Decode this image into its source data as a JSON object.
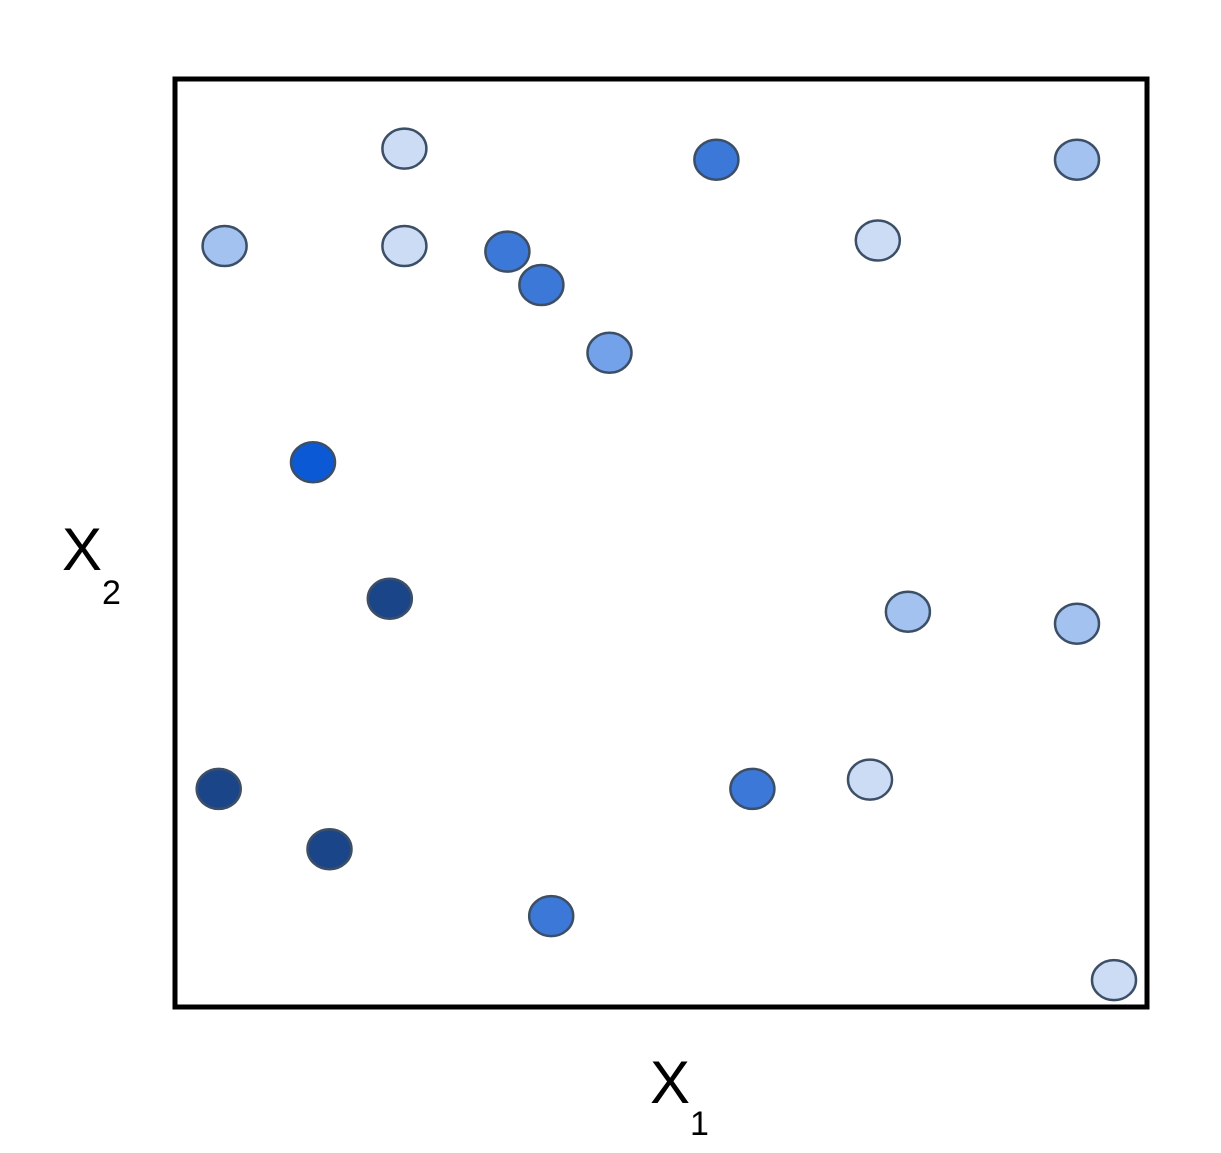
{
  "chart_data": {
    "type": "scatter",
    "title": "",
    "xlabel": {
      "main": "X",
      "sub": "1"
    },
    "ylabel": {
      "main": "X",
      "sub": "2"
    },
    "xlim": [
      0,
      1
    ],
    "ylim": [
      0,
      1
    ],
    "grid": false,
    "legend": "none",
    "colors": {
      "lightest": "#cddcf5",
      "light": "#a4c2f0",
      "medium": "#74a2ea",
      "bright": "#3c78d8",
      "vivid": "#0b59d4",
      "dark": "#1b4589",
      "stroke": "#3c4f66"
    },
    "points": [
      {
        "x": 0.236,
        "y": 0.925,
        "shade": "lightest"
      },
      {
        "x": 0.557,
        "y": 0.913,
        "shade": "bright"
      },
      {
        "x": 0.928,
        "y": 0.913,
        "shade": "light"
      },
      {
        "x": 0.051,
        "y": 0.82,
        "shade": "light"
      },
      {
        "x": 0.236,
        "y": 0.82,
        "shade": "lightest"
      },
      {
        "x": 0.342,
        "y": 0.814,
        "shade": "bright"
      },
      {
        "x": 0.377,
        "y": 0.778,
        "shade": "bright"
      },
      {
        "x": 0.447,
        "y": 0.705,
        "shade": "medium"
      },
      {
        "x": 0.723,
        "y": 0.826,
        "shade": "lightest"
      },
      {
        "x": 0.142,
        "y": 0.587,
        "shade": "vivid"
      },
      {
        "x": 0.221,
        "y": 0.44,
        "shade": "dark"
      },
      {
        "x": 0.754,
        "y": 0.426,
        "shade": "light"
      },
      {
        "x": 0.928,
        "y": 0.413,
        "shade": "light"
      },
      {
        "x": 0.045,
        "y": 0.235,
        "shade": "dark"
      },
      {
        "x": 0.159,
        "y": 0.17,
        "shade": "dark"
      },
      {
        "x": 0.594,
        "y": 0.235,
        "shade": "bright"
      },
      {
        "x": 0.715,
        "y": 0.245,
        "shade": "lightest"
      },
      {
        "x": 0.387,
        "y": 0.098,
        "shade": "bright"
      },
      {
        "x": 0.966,
        "y": 0.029,
        "shade": "lightest"
      }
    ]
  }
}
